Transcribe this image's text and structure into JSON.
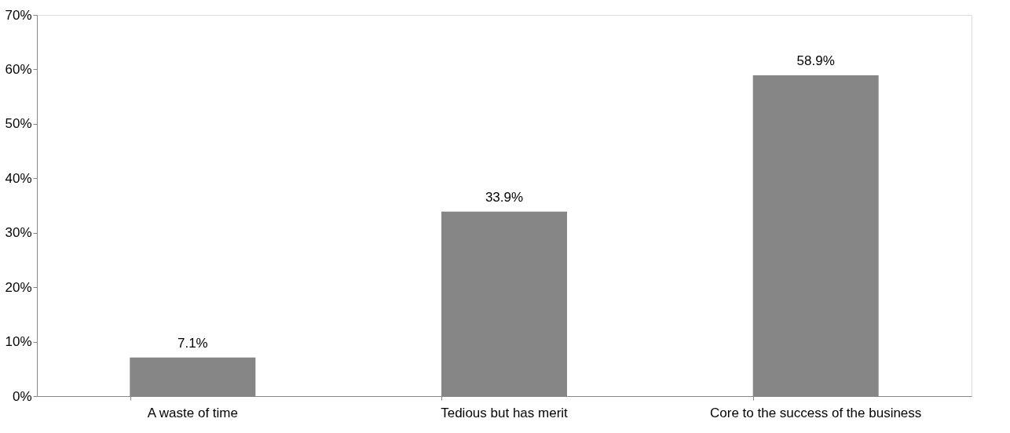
{
  "chart_data": {
    "type": "bar",
    "categories": [
      "A waste of time",
      "Tedious but has merit",
      "Core to the success of the business"
    ],
    "values": [
      7.1,
      33.9,
      58.9
    ],
    "color": "#868686",
    "value_labels": [
      "7.1%",
      "33.9%",
      "58.9%"
    ],
    "ylim": [
      0,
      70
    ],
    "yticks": [
      {
        "value": 0,
        "label": "0%"
      },
      {
        "value": 10,
        "label": "10%"
      },
      {
        "value": 20,
        "label": "20%"
      },
      {
        "value": 30,
        "label": "30%"
      },
      {
        "value": 40,
        "label": "40%"
      },
      {
        "value": 50,
        "label": "50%"
      },
      {
        "value": 60,
        "label": "60%"
      },
      {
        "value": 70,
        "label": "70%"
      }
    ],
    "grid": false
  }
}
